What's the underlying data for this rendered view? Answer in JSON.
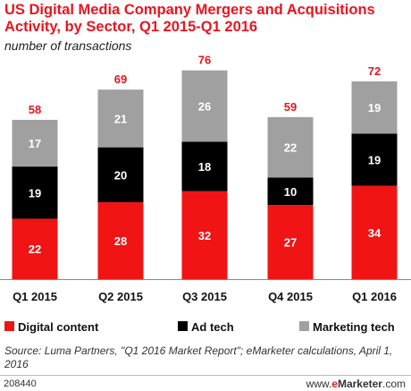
{
  "title": "US Digital Media Company Mergers and Acquisitions Activity, by Sector, Q1 2015-Q1 2016",
  "subtitle": "number of transactions",
  "source": "Source: Luma Partners, \"Q1 2016 Market Report\"; eMarketer calculations, April 1, 2016",
  "footer_id": "208440",
  "footer_brand_www": "www.",
  "footer_brand_e": "e",
  "footer_brand_rest": "Marketer",
  "footer_brand_com": ".com",
  "colors": {
    "accent": "#e8151f",
    "digital_content": "#f01414",
    "ad_tech": "#000000",
    "marketing_tech": "#a0a0a0",
    "total_label": "#e8151f"
  },
  "chart_data": {
    "type": "bar",
    "stacked": true,
    "categories": [
      "Q1 2015",
      "Q2 2015",
      "Q3 2015",
      "Q4 2015",
      "Q1 2016"
    ],
    "series": [
      {
        "name": "Digital content",
        "values": [
          22,
          28,
          32,
          27,
          34
        ]
      },
      {
        "name": "Ad tech",
        "values": [
          19,
          20,
          18,
          10,
          19
        ]
      },
      {
        "name": "Marketing tech",
        "values": [
          17,
          21,
          26,
          22,
          19
        ]
      }
    ],
    "totals": [
      58,
      69,
      76,
      59,
      72
    ],
    "legend_position": "bottom",
    "grid": false
  }
}
